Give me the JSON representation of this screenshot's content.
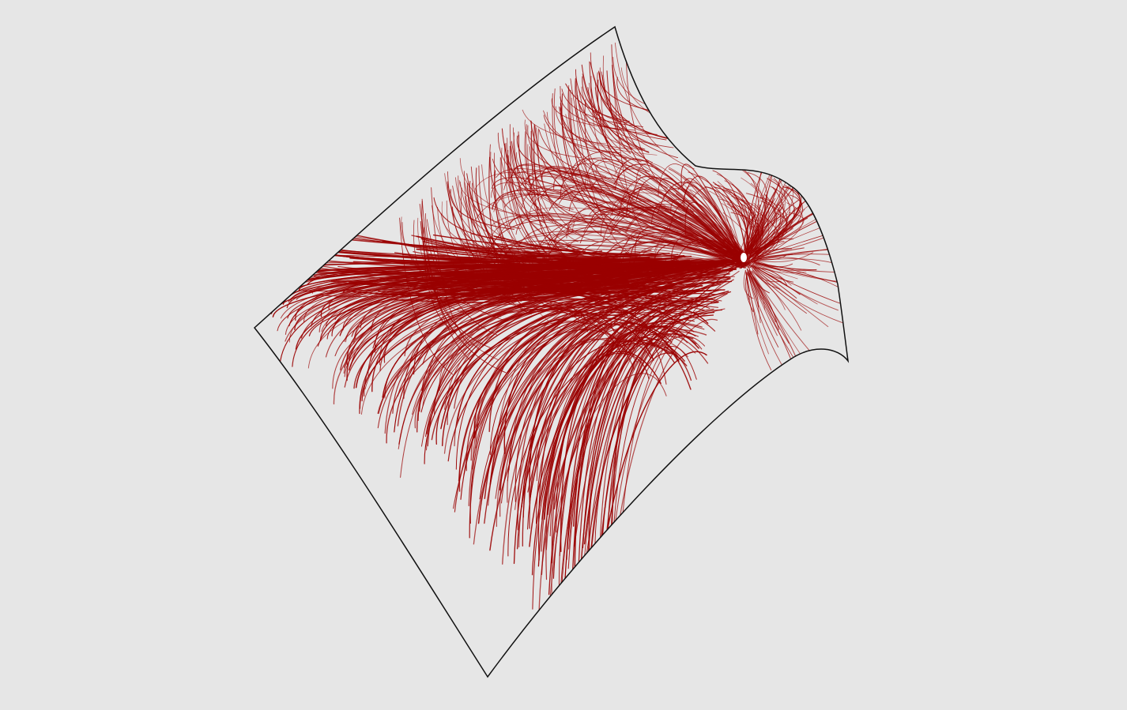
{
  "scene": {
    "background_color": "#e6e6e6",
    "surface_outline_color": "#111111",
    "streamline_color": "#9a0000",
    "description_visible_text": ""
  }
}
